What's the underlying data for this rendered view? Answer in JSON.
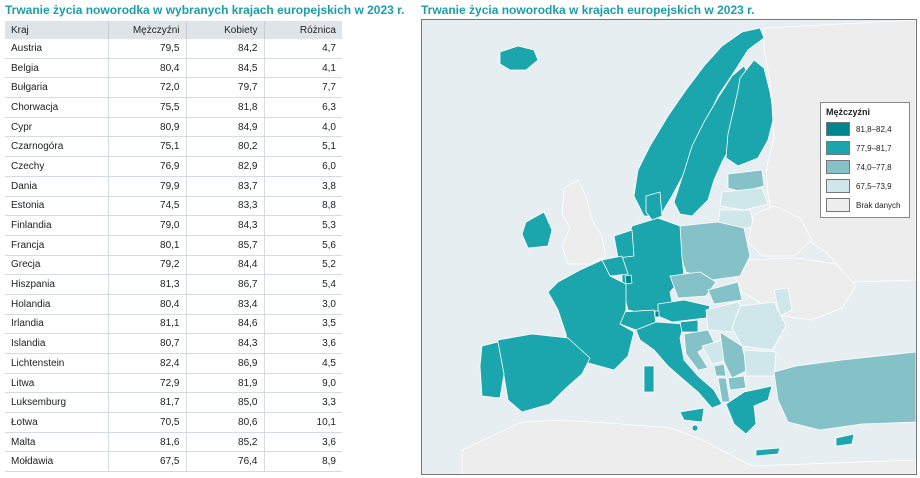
{
  "left_title": "Trwanie życia noworodka w wybranych krajach europejskich w 2023 r.",
  "right_title": "Trwanie życia noworodka w krajach europejskich w 2023 r.",
  "table": {
    "headers": [
      "Kraj",
      "Mężczyźni",
      "Kobiety",
      "Różnica"
    ],
    "rows": [
      [
        "Austria",
        "79,5",
        "84,2",
        "4,7"
      ],
      [
        "Belgia",
        "80,4",
        "84,5",
        "4,1"
      ],
      [
        "Bułgaria",
        "72,0",
        "79,7",
        "7,7"
      ],
      [
        "Chorwacja",
        "75,5",
        "81,8",
        "6,3"
      ],
      [
        "Cypr",
        "80,9",
        "84,9",
        "4,0"
      ],
      [
        "Czarnogóra",
        "75,1",
        "80,2",
        "5,1"
      ],
      [
        "Czechy",
        "76,9",
        "82,9",
        "6,0"
      ],
      [
        "Dania",
        "79,9",
        "83,7",
        "3,8"
      ],
      [
        "Estonia",
        "74,5",
        "83,3",
        "8,8"
      ],
      [
        "Finlandia",
        "79,0",
        "84,3",
        "5,3"
      ],
      [
        "Francja",
        "80,1",
        "85,7",
        "5,6"
      ],
      [
        "Grecja",
        "79,2",
        "84,4",
        "5,2"
      ],
      [
        "Hiszpania",
        "81,3",
        "86,7",
        "5,4"
      ],
      [
        "Holandia",
        "80,4",
        "83,4",
        "3,0"
      ],
      [
        "Irlandia",
        "81,1",
        "84,6",
        "3,5"
      ],
      [
        "Islandia",
        "80,7",
        "84,3",
        "3,6"
      ],
      [
        "Lichtenstein",
        "82,4",
        "86,9",
        "4,5"
      ],
      [
        "Litwa",
        "72,9",
        "81,9",
        "9,0"
      ],
      [
        "Luksemburg",
        "81,7",
        "85,0",
        "3,3"
      ],
      [
        "Łotwa",
        "70,5",
        "80,6",
        "10,1"
      ],
      [
        "Malta",
        "81,6",
        "85,2",
        "3,6"
      ],
      [
        "Mołdawia",
        "67,5",
        "76,4",
        "8,9"
      ]
    ]
  },
  "colors": {
    "title": "#1a9fa8",
    "sea": "#e6eef2",
    "header_bg": "#dfe4e8",
    "c1": "#00868f",
    "c2": "#1ba5ac",
    "c3": "#84c2c8",
    "c4": "#cfe6ea",
    "none": "#ededed"
  },
  "legend": {
    "title": "Mężczyźni",
    "items": [
      {
        "label": "81,8–82,4",
        "cls": "c1"
      },
      {
        "label": "77,9–81,7",
        "cls": "c2"
      },
      {
        "label": "74,0–77,8",
        "cls": "c3"
      },
      {
        "label": "67,5–73,9",
        "cls": "c4"
      },
      {
        "label": "Brak danych",
        "cls": "none"
      }
    ]
  },
  "chart_data": {
    "type": "table",
    "columns": [
      "Kraj",
      "Mężczyźni",
      "Kobiety",
      "Różnica"
    ],
    "rows": [
      [
        "Austria",
        79.5,
        84.2,
        4.7
      ],
      [
        "Belgia",
        80.4,
        84.5,
        4.1
      ],
      [
        "Bułgaria",
        72.0,
        79.7,
        7.7
      ],
      [
        "Chorwacja",
        75.5,
        81.8,
        6.3
      ],
      [
        "Cypr",
        80.9,
        84.9,
        4.0
      ],
      [
        "Czarnogóra",
        75.1,
        80.2,
        5.1
      ],
      [
        "Czechy",
        76.9,
        82.9,
        6.0
      ],
      [
        "Dania",
        79.9,
        83.7,
        3.8
      ],
      [
        "Estonia",
        74.5,
        83.3,
        8.8
      ],
      [
        "Finlandia",
        79.0,
        84.3,
        5.3
      ],
      [
        "Francja",
        80.1,
        85.7,
        5.6
      ],
      [
        "Grecja",
        79.2,
        84.4,
        5.2
      ],
      [
        "Hiszpania",
        81.3,
        86.7,
        5.4
      ],
      [
        "Holandia",
        80.4,
        83.4,
        3.0
      ],
      [
        "Irlandia",
        81.1,
        84.6,
        3.5
      ],
      [
        "Islandia",
        80.7,
        84.3,
        3.6
      ],
      [
        "Lichtenstein",
        82.4,
        86.9,
        4.5
      ],
      [
        "Litwa",
        72.9,
        81.9,
        9.0
      ],
      [
        "Luksemburg",
        81.7,
        85.0,
        3.3
      ],
      [
        "Łotwa",
        70.5,
        80.6,
        10.1
      ],
      [
        "Malta",
        81.6,
        85.2,
        3.6
      ],
      [
        "Mołdawia",
        67.5,
        76.4,
        8.9
      ]
    ],
    "map": {
      "type": "choropleth",
      "title": "Trwanie życia noworodka w krajach europejskich w 2023 r.",
      "legend_title": "Mężczyźni",
      "classes": [
        "81,8–82,4",
        "77,9–81,7",
        "74,0–77,8",
        "67,5–73,9",
        "Brak danych"
      ],
      "legend_position": "right"
    }
  }
}
